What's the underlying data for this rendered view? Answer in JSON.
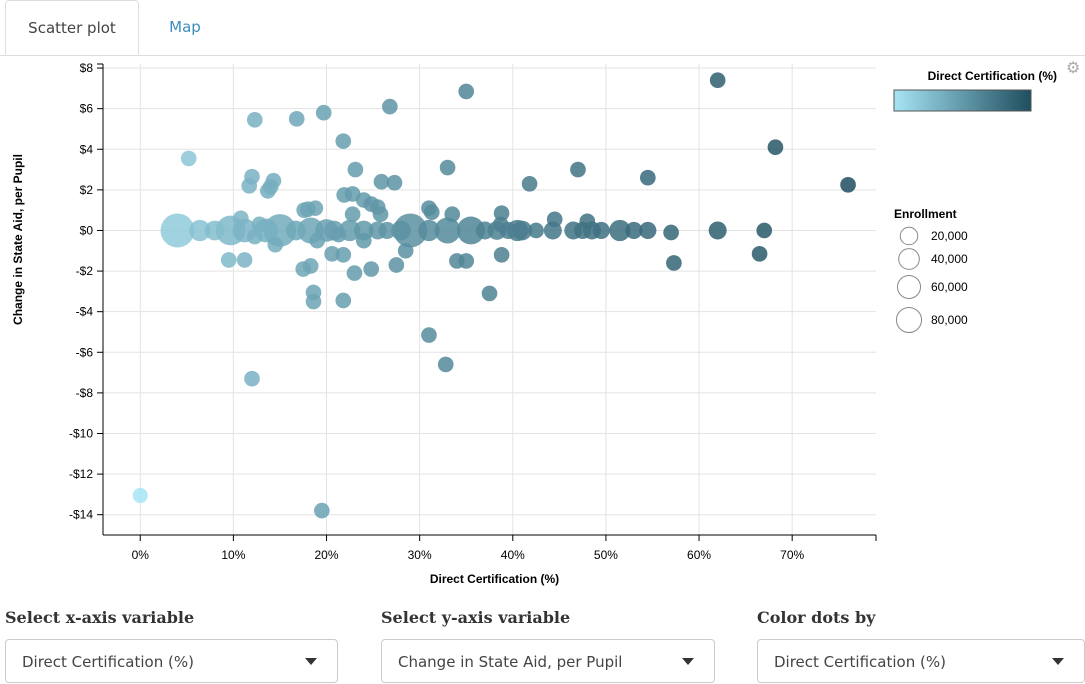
{
  "tabs": [
    {
      "label": "Scatter plot",
      "active": true
    },
    {
      "label": "Map",
      "active": false
    }
  ],
  "controls": {
    "x_label": "Select x-axis variable",
    "x_value": "Direct Certification (%)",
    "y_label": "Select y-axis variable",
    "y_value": "Change in State Aid, per Pupil",
    "color_label": "Color dots by",
    "color_value": "Direct Certification (%)"
  },
  "icons": {
    "settings": "gear-icon",
    "dropdown": "chevron-down-icon"
  },
  "chart_data": {
    "type": "scatter",
    "xlabel": "Direct Certification (%)",
    "ylabel": "Change in State Aid, per Pupil",
    "xlim": [
      -0.04,
      0.79
    ],
    "ylim": [
      -15,
      8.2
    ],
    "x_ticks": [
      0,
      0.1,
      0.2,
      0.3,
      0.4,
      0.5,
      0.6,
      0.7
    ],
    "x_tick_labels": [
      "0%",
      "10%",
      "20%",
      "30%",
      "40%",
      "50%",
      "60%",
      "70%"
    ],
    "y_ticks": [
      8,
      6,
      4,
      2,
      0,
      -2,
      -4,
      -6,
      -8,
      -10,
      -12,
      -14
    ],
    "y_tick_labels": [
      "$8",
      "$6",
      "$4",
      "$2",
      "$0",
      "-$2",
      "-$4",
      "-$6",
      "-$8",
      "-$10",
      "-$12",
      "-$14"
    ],
    "grid": true,
    "color_legend": {
      "title": "Direct Certification (%)",
      "low": "#a6e4f4",
      "high": "#1f4e5f"
    },
    "size_legend": {
      "title": "Enrollment",
      "entries": [
        "20,000",
        "40,000",
        "60,000",
        "80,000"
      ],
      "values": [
        20000,
        40000,
        60000,
        80000
      ]
    },
    "points": [
      {
        "x": 0.0,
        "y": -13.05,
        "e": 4000
      },
      {
        "x": 0.195,
        "y": -13.8,
        "e": 5000
      },
      {
        "x": 0.12,
        "y": -7.3,
        "e": 5000
      },
      {
        "x": 0.31,
        "y": -5.15,
        "e": 5000
      },
      {
        "x": 0.328,
        "y": -6.6,
        "e": 5000
      },
      {
        "x": 0.375,
        "y": -3.1,
        "e": 5000
      },
      {
        "x": 0.186,
        "y": -3.05,
        "e": 5000
      },
      {
        "x": 0.186,
        "y": -3.5,
        "e": 5000
      },
      {
        "x": 0.218,
        "y": -3.45,
        "e": 5000
      },
      {
        "x": 0.052,
        "y": 3.55,
        "e": 5000
      },
      {
        "x": 0.123,
        "y": 5.45,
        "e": 5000
      },
      {
        "x": 0.168,
        "y": 5.5,
        "e": 5000
      },
      {
        "x": 0.197,
        "y": 5.8,
        "e": 5000
      },
      {
        "x": 0.268,
        "y": 6.1,
        "e": 5000
      },
      {
        "x": 0.35,
        "y": 6.85,
        "e": 5000
      },
      {
        "x": 0.62,
        "y": 7.4,
        "e": 5000
      },
      {
        "x": 0.218,
        "y": 4.4,
        "e": 5000
      },
      {
        "x": 0.33,
        "y": 3.1,
        "e": 5000
      },
      {
        "x": 0.231,
        "y": 3.0,
        "e": 5000
      },
      {
        "x": 0.12,
        "y": 2.65,
        "e": 5000
      },
      {
        "x": 0.143,
        "y": 2.45,
        "e": 5000
      },
      {
        "x": 0.117,
        "y": 2.2,
        "e": 5000
      },
      {
        "x": 0.14,
        "y": 2.15,
        "e": 5000
      },
      {
        "x": 0.137,
        "y": 1.95,
        "e": 5000
      },
      {
        "x": 0.176,
        "y": 1.0,
        "e": 5000
      },
      {
        "x": 0.18,
        "y": 1.05,
        "e": 5000
      },
      {
        "x": 0.188,
        "y": 1.1,
        "e": 5000
      },
      {
        "x": 0.219,
        "y": 1.75,
        "e": 5000
      },
      {
        "x": 0.228,
        "y": 1.8,
        "e": 5000
      },
      {
        "x": 0.24,
        "y": 1.5,
        "e": 5000
      },
      {
        "x": 0.248,
        "y": 1.3,
        "e": 5000
      },
      {
        "x": 0.255,
        "y": 1.15,
        "e": 5000
      },
      {
        "x": 0.258,
        "y": 0.8,
        "e": 5000
      },
      {
        "x": 0.259,
        "y": 2.4,
        "e": 5000
      },
      {
        "x": 0.273,
        "y": 2.35,
        "e": 5000
      },
      {
        "x": 0.228,
        "y": 0.8,
        "e": 5000
      },
      {
        "x": 0.31,
        "y": 1.1,
        "e": 5000
      },
      {
        "x": 0.313,
        "y": 0.9,
        "e": 5000
      },
      {
        "x": 0.335,
        "y": 0.8,
        "e": 5000
      },
      {
        "x": 0.388,
        "y": 0.85,
        "e": 5000
      },
      {
        "x": 0.418,
        "y": 2.3,
        "e": 5000
      },
      {
        "x": 0.47,
        "y": 3.0,
        "e": 5000
      },
      {
        "x": 0.545,
        "y": 2.6,
        "e": 5000
      },
      {
        "x": 0.682,
        "y": 4.1,
        "e": 5000
      },
      {
        "x": 0.76,
        "y": 2.25,
        "e": 5000
      },
      {
        "x": 0.445,
        "y": 0.55,
        "e": 5000
      },
      {
        "x": 0.48,
        "y": 0.45,
        "e": 5000
      },
      {
        "x": 0.387,
        "y": 0.3,
        "e": 5000
      },
      {
        "x": 0.108,
        "y": 0.6,
        "e": 5000
      },
      {
        "x": 0.128,
        "y": 0.3,
        "e": 5000
      },
      {
        "x": 0.04,
        "y": 0.0,
        "e": 90000
      },
      {
        "x": 0.064,
        "y": 0.0,
        "e": 20000
      },
      {
        "x": 0.08,
        "y": 0.0,
        "e": 15000
      },
      {
        "x": 0.097,
        "y": 0.0,
        "e": 60000
      },
      {
        "x": 0.112,
        "y": 0.0,
        "e": 30000
      },
      {
        "x": 0.135,
        "y": 0.0,
        "e": 30000
      },
      {
        "x": 0.15,
        "y": 0.0,
        "e": 80000
      },
      {
        "x": 0.167,
        "y": 0.0,
        "e": 15000
      },
      {
        "x": 0.183,
        "y": 0.0,
        "e": 40000
      },
      {
        "x": 0.2,
        "y": 0.0,
        "e": 25000
      },
      {
        "x": 0.208,
        "y": 0.0,
        "e": 15000
      },
      {
        "x": 0.225,
        "y": 0.0,
        "e": 20000
      },
      {
        "x": 0.24,
        "y": 0.0,
        "e": 15000
      },
      {
        "x": 0.255,
        "y": 0.0,
        "e": 10000
      },
      {
        "x": 0.265,
        "y": 0.0,
        "e": 8000
      },
      {
        "x": 0.28,
        "y": 0.0,
        "e": 15000
      },
      {
        "x": 0.29,
        "y": 0.0,
        "e": 90000
      },
      {
        "x": 0.31,
        "y": 0.0,
        "e": 20000
      },
      {
        "x": 0.33,
        "y": 0.0,
        "e": 40000
      },
      {
        "x": 0.355,
        "y": 0.0,
        "e": 50000
      },
      {
        "x": 0.37,
        "y": 0.0,
        "e": 10000
      },
      {
        "x": 0.383,
        "y": 0.0,
        "e": 12000
      },
      {
        "x": 0.395,
        "y": 0.0,
        "e": 8000
      },
      {
        "x": 0.405,
        "y": 0.0,
        "e": 20000
      },
      {
        "x": 0.41,
        "y": 0.0,
        "e": 15000
      },
      {
        "x": 0.425,
        "y": 0.0,
        "e": 5000
      },
      {
        "x": 0.443,
        "y": 0.0,
        "e": 10000
      },
      {
        "x": 0.465,
        "y": 0.0,
        "e": 10000
      },
      {
        "x": 0.475,
        "y": 0.0,
        "e": 8000
      },
      {
        "x": 0.485,
        "y": 0.0,
        "e": 10000
      },
      {
        "x": 0.495,
        "y": 0.0,
        "e": 8000
      },
      {
        "x": 0.515,
        "y": 0.0,
        "e": 20000
      },
      {
        "x": 0.53,
        "y": 0.0,
        "e": 8000
      },
      {
        "x": 0.545,
        "y": 0.0,
        "e": 8000
      },
      {
        "x": 0.57,
        "y": -0.1,
        "e": 5000
      },
      {
        "x": 0.62,
        "y": 0.0,
        "e": 10000
      },
      {
        "x": 0.67,
        "y": 0.0,
        "e": 5000
      },
      {
        "x": 0.665,
        "y": -1.15,
        "e": 5000
      },
      {
        "x": 0.573,
        "y": -1.6,
        "e": 5000
      },
      {
        "x": 0.095,
        "y": -1.45,
        "e": 5000
      },
      {
        "x": 0.112,
        "y": -1.45,
        "e": 5000
      },
      {
        "x": 0.175,
        "y": -1.9,
        "e": 5000
      },
      {
        "x": 0.183,
        "y": -1.75,
        "e": 5000
      },
      {
        "x": 0.206,
        "y": -1.15,
        "e": 5000
      },
      {
        "x": 0.23,
        "y": -2.1,
        "e": 5000
      },
      {
        "x": 0.248,
        "y": -1.9,
        "e": 5000
      },
      {
        "x": 0.275,
        "y": -1.7,
        "e": 5000
      },
      {
        "x": 0.34,
        "y": -1.5,
        "e": 5000
      },
      {
        "x": 0.35,
        "y": -1.5,
        "e": 5000
      },
      {
        "x": 0.388,
        "y": -1.2,
        "e": 5000
      },
      {
        "x": 0.285,
        "y": -1.0,
        "e": 5000
      },
      {
        "x": 0.218,
        "y": -1.2,
        "e": 5000
      },
      {
        "x": 0.24,
        "y": -0.5,
        "e": 5000
      },
      {
        "x": 0.145,
        "y": -0.7,
        "e": 5000
      },
      {
        "x": 0.19,
        "y": -0.5,
        "e": 5000
      },
      {
        "x": 0.123,
        "y": -0.3,
        "e": 5000
      },
      {
        "x": 0.213,
        "y": -0.2,
        "e": 5000
      }
    ]
  }
}
